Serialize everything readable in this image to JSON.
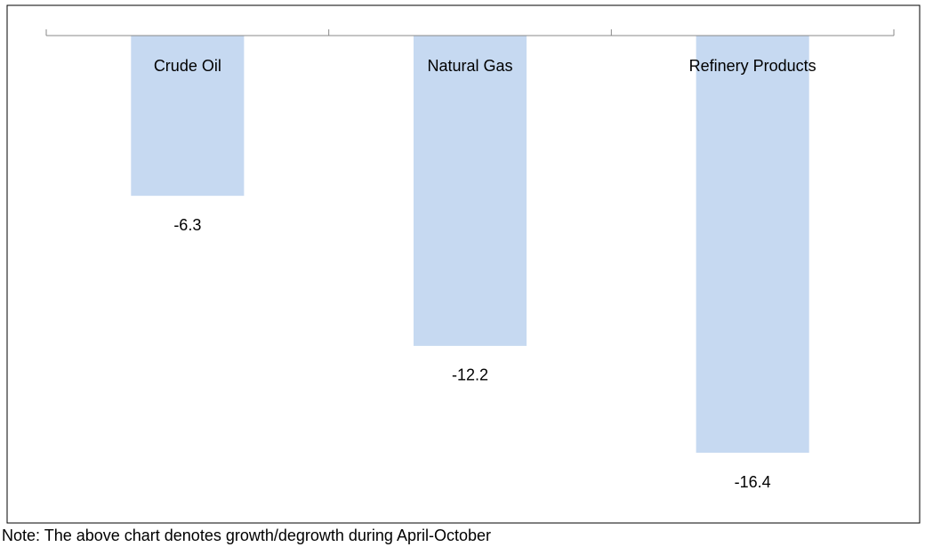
{
  "chart_data": {
    "type": "bar",
    "categories": [
      "Crude Oil",
      "Natural Gas",
      "Refinery Products"
    ],
    "values": [
      -6.3,
      -12.2,
      -16.4
    ],
    "color": "#c6d9f1",
    "note": "Note: The above chart denotes growth/degrowth during April-October"
  }
}
